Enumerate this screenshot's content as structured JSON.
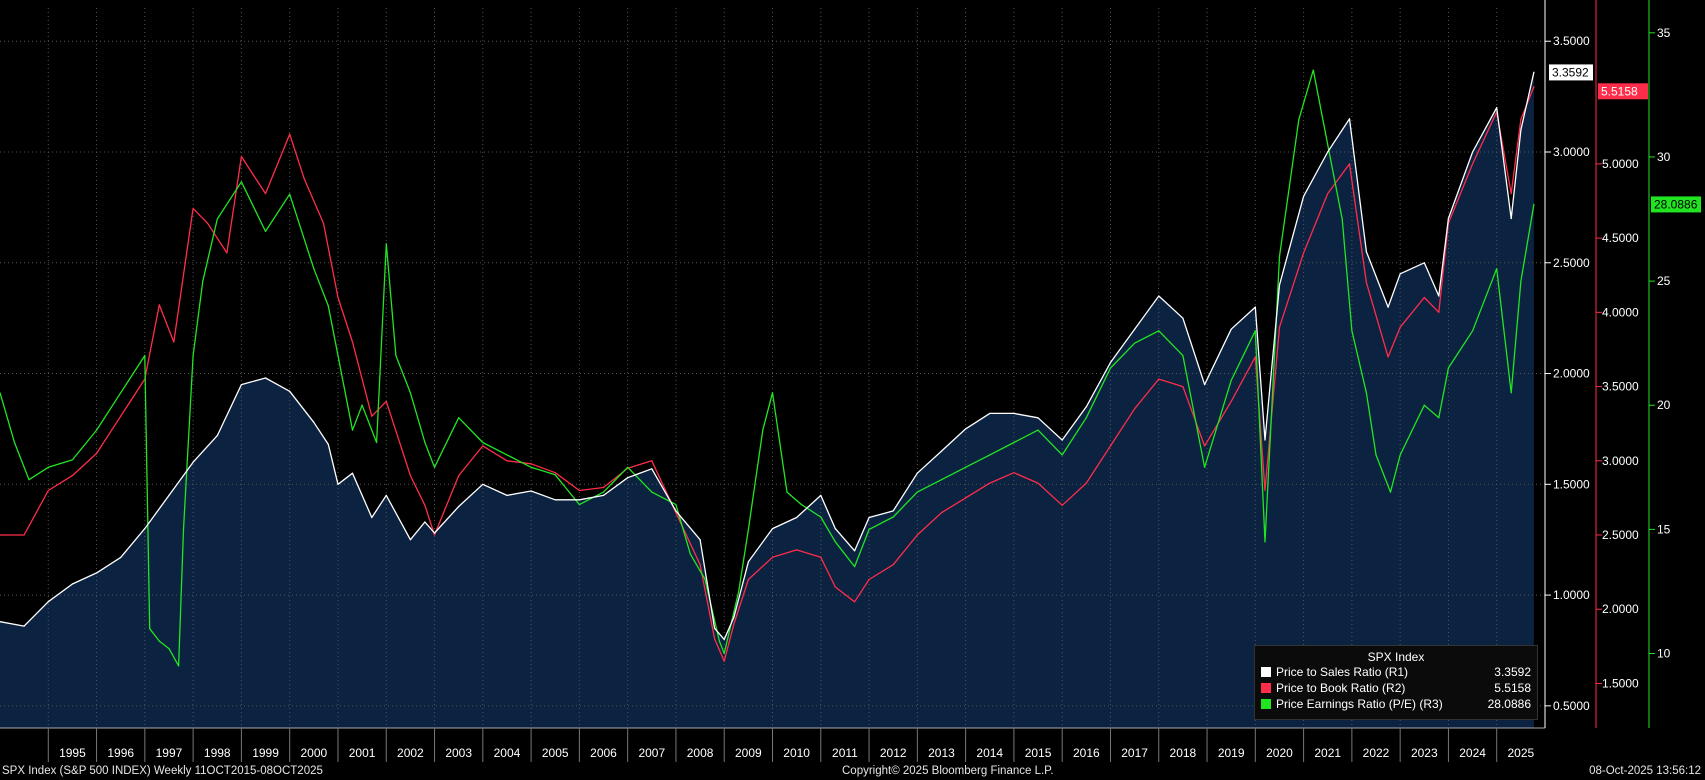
{
  "chart_data": {
    "type": "line",
    "title": "SPX Index",
    "x_range": [
      1994.0,
      2026.0
    ],
    "year_labels": [
      "1995",
      "1996",
      "1997",
      "1998",
      "1999",
      "2000",
      "2001",
      "2002",
      "2003",
      "2004",
      "2005",
      "2006",
      "2007",
      "2008",
      "2009",
      "2010",
      "2011",
      "2012",
      "2013",
      "2014",
      "2015",
      "2016",
      "2017",
      "2018",
      "2019",
      "2020",
      "2021",
      "2022",
      "2023",
      "2024",
      "2025"
    ],
    "axes": {
      "r1": {
        "min": 0.4,
        "max": 3.65,
        "ticks": [
          "0.5000",
          "1.0000",
          "1.5000",
          "2.0000",
          "2.5000",
          "3.0000",
          "3.5000"
        ],
        "tick_values": [
          0.5,
          1.0,
          1.5,
          2.0,
          2.5,
          3.0,
          3.5
        ],
        "color": "#ffffff"
      },
      "r2": {
        "min": 1.2,
        "max": 6.05,
        "ticks": [
          "1.5000",
          "2.0000",
          "2.5000",
          "3.0000",
          "3.5000",
          "4.0000",
          "4.5000",
          "5.0000"
        ],
        "tick_values": [
          1.5,
          2.0,
          2.5,
          3.0,
          3.5,
          4.0,
          4.5,
          5.0
        ],
        "color": "#ff2d4a"
      },
      "r3": {
        "min": 7.0,
        "max": 36.0,
        "ticks": [
          "10",
          "15",
          "20",
          "25",
          "30",
          "35"
        ],
        "tick_values": [
          10,
          15,
          20,
          25,
          30,
          35
        ],
        "color": "#22e522"
      }
    },
    "series": [
      {
        "name": "Price to Sales Ratio",
        "axis": "r1",
        "color": "#ffffff",
        "filled": true,
        "x": [
          1994.0,
          1994.5,
          1995.0,
          1995.5,
          1996.0,
          1996.5,
          1997.0,
          1997.5,
          1998.0,
          1998.5,
          1999.0,
          1999.5,
          2000.0,
          2000.5,
          2000.8,
          2001.0,
          2001.3,
          2001.7,
          2002.0,
          2002.5,
          2002.8,
          2003.0,
          2003.5,
          2004.0,
          2004.5,
          2005.0,
          2005.5,
          2006.0,
          2006.5,
          2007.0,
          2007.5,
          2008.0,
          2008.5,
          2008.8,
          2009.0,
          2009.2,
          2009.5,
          2010.0,
          2010.5,
          2011.0,
          2011.3,
          2011.7,
          2012.0,
          2012.5,
          2013.0,
          2013.5,
          2014.0,
          2014.5,
          2015.0,
          2015.5,
          2016.0,
          2016.5,
          2017.0,
          2017.5,
          2018.0,
          2018.5,
          2018.95,
          2019.5,
          2020.0,
          2020.2,
          2020.5,
          2021.0,
          2021.5,
          2021.95,
          2022.3,
          2022.75,
          2023.0,
          2023.5,
          2023.8,
          2024.0,
          2024.5,
          2025.0,
          2025.3,
          2025.5,
          2025.77
        ],
        "values": [
          0.88,
          0.86,
          0.97,
          1.05,
          1.1,
          1.17,
          1.3,
          1.45,
          1.6,
          1.72,
          1.95,
          1.98,
          1.92,
          1.78,
          1.68,
          1.5,
          1.55,
          1.35,
          1.45,
          1.25,
          1.33,
          1.28,
          1.4,
          1.5,
          1.45,
          1.47,
          1.43,
          1.43,
          1.45,
          1.53,
          1.57,
          1.38,
          1.25,
          0.85,
          0.8,
          0.9,
          1.15,
          1.3,
          1.35,
          1.45,
          1.3,
          1.2,
          1.35,
          1.38,
          1.55,
          1.65,
          1.75,
          1.82,
          1.82,
          1.8,
          1.7,
          1.85,
          2.05,
          2.2,
          2.35,
          2.25,
          1.95,
          2.2,
          2.3,
          1.7,
          2.4,
          2.8,
          3.0,
          3.15,
          2.55,
          2.3,
          2.45,
          2.5,
          2.35,
          2.7,
          3.0,
          3.2,
          2.7,
          3.1,
          3.36
        ]
      },
      {
        "name": "Price to Book Ratio",
        "axis": "r2",
        "color": "#ff2d4a",
        "filled": false,
        "x": [
          1994.0,
          1994.5,
          1995.0,
          1995.5,
          1996.0,
          1996.5,
          1997.0,
          1997.3,
          1997.6,
          1998.0,
          1998.3,
          1998.7,
          1999.0,
          1999.5,
          2000.0,
          2000.3,
          2000.7,
          2001.0,
          2001.3,
          2001.7,
          2002.0,
          2002.5,
          2002.8,
          2003.0,
          2003.5,
          2004.0,
          2004.5,
          2005.0,
          2005.5,
          2006.0,
          2006.5,
          2007.0,
          2007.5,
          2008.0,
          2008.5,
          2008.8,
          2009.0,
          2009.2,
          2009.5,
          2010.0,
          2010.5,
          2011.0,
          2011.3,
          2011.7,
          2012.0,
          2012.5,
          2013.0,
          2013.5,
          2014.0,
          2014.5,
          2015.0,
          2015.5,
          2016.0,
          2016.5,
          2017.0,
          2017.5,
          2018.0,
          2018.5,
          2018.95,
          2019.5,
          2020.0,
          2020.2,
          2020.5,
          2021.0,
          2021.5,
          2021.95,
          2022.3,
          2022.75,
          2023.0,
          2023.5,
          2023.8,
          2024.0,
          2024.5,
          2025.0,
          2025.3,
          2025.5,
          2025.77
        ],
        "values": [
          2.5,
          2.5,
          2.8,
          2.9,
          3.05,
          3.3,
          3.55,
          4.05,
          3.8,
          4.7,
          4.6,
          4.4,
          5.05,
          4.8,
          5.2,
          4.9,
          4.6,
          4.1,
          3.8,
          3.3,
          3.4,
          2.9,
          2.7,
          2.5,
          2.9,
          3.1,
          3.0,
          2.98,
          2.92,
          2.8,
          2.82,
          2.95,
          3.0,
          2.65,
          2.3,
          1.8,
          1.65,
          1.9,
          2.2,
          2.35,
          2.4,
          2.35,
          2.15,
          2.05,
          2.2,
          2.3,
          2.5,
          2.65,
          2.75,
          2.85,
          2.92,
          2.85,
          2.7,
          2.85,
          3.1,
          3.35,
          3.55,
          3.5,
          3.1,
          3.4,
          3.7,
          2.8,
          3.9,
          4.4,
          4.8,
          5.0,
          4.2,
          3.7,
          3.9,
          4.1,
          4.0,
          4.6,
          5.0,
          5.35,
          4.8,
          5.3,
          5.52
        ]
      },
      {
        "name": "Price Earnings Ratio (P/E)",
        "axis": "r3",
        "color": "#22e522",
        "filled": false,
        "x": [
          1994.0,
          1994.3,
          1994.6,
          1995.0,
          1995.5,
          1996.0,
          1996.5,
          1997.0,
          1997.1,
          1997.3,
          1997.5,
          1997.7,
          1997.8,
          1998.0,
          1998.2,
          1998.5,
          1999.0,
          1999.5,
          2000.0,
          2000.5,
          2000.8,
          2001.0,
          2001.3,
          2001.5,
          2001.8,
          2002.0,
          2002.2,
          2002.5,
          2002.8,
          2003.0,
          2003.5,
          2004.0,
          2004.5,
          2005.0,
          2005.5,
          2006.0,
          2006.5,
          2007.0,
          2007.5,
          2008.0,
          2008.3,
          2008.6,
          2008.9,
          2009.0,
          2009.3,
          2009.5,
          2009.8,
          2010.0,
          2010.3,
          2010.6,
          2011.0,
          2011.3,
          2011.7,
          2012.0,
          2012.5,
          2013.0,
          2013.5,
          2014.0,
          2014.5,
          2015.0,
          2015.5,
          2016.0,
          2016.5,
          2017.0,
          2017.5,
          2018.0,
          2018.5,
          2018.95,
          2019.5,
          2020.0,
          2020.2,
          2020.5,
          2020.9,
          2021.2,
          2021.5,
          2021.8,
          2022.0,
          2022.3,
          2022.5,
          2022.8,
          2023.0,
          2023.5,
          2023.8,
          2024.0,
          2024.5,
          2025.0,
          2025.3,
          2025.5,
          2025.77
        ],
        "values": [
          20.5,
          18.5,
          17.0,
          17.5,
          17.8,
          19.0,
          20.5,
          22.0,
          11.0,
          10.5,
          10.2,
          9.5,
          15.0,
          22.0,
          25.0,
          27.5,
          29.0,
          27.0,
          28.5,
          25.5,
          24.0,
          22.0,
          19.0,
          20.0,
          18.5,
          26.5,
          22.0,
          20.5,
          18.5,
          17.5,
          19.5,
          18.5,
          18.0,
          17.5,
          17.2,
          16.0,
          16.5,
          17.5,
          16.5,
          16.0,
          14.0,
          13.0,
          10.5,
          10.0,
          12.5,
          15.0,
          19.0,
          20.5,
          16.5,
          16.0,
          15.5,
          14.5,
          13.5,
          15.0,
          15.5,
          16.5,
          17.0,
          17.5,
          18.0,
          18.5,
          19.0,
          18.0,
          19.5,
          21.5,
          22.5,
          23.0,
          22.0,
          17.5,
          21.0,
          23.0,
          14.5,
          26.0,
          31.5,
          33.5,
          30.5,
          27.5,
          23.0,
          20.5,
          18.0,
          16.5,
          18.0,
          20.0,
          19.5,
          21.5,
          23.0,
          25.5,
          20.5,
          25.0,
          28.09
        ]
      }
    ],
    "last_values": {
      "r1": "3.3592",
      "r2": "5.5158",
      "r3": "28.0886"
    },
    "legend": {
      "title": "SPX Index",
      "entries": [
        {
          "label": "Price to Sales Ratio  (R1)",
          "value": "3.3592",
          "color": "#ffffff"
        },
        {
          "label": "Price to Book Ratio  (R2)",
          "value": "5.5158",
          "color": "#ff2d4a"
        },
        {
          "label": "Price Earnings Ratio (P/E)  (R3)",
          "value": "28.0886",
          "color": "#22e522"
        }
      ]
    },
    "colors": {
      "fill": "#0b2240",
      "grid": "#555555",
      "background": "#000000"
    }
  },
  "footer": {
    "left": "SPX Index (S&P 500 INDEX) Weekly 11OCT2015-08OCT2025",
    "center": "Copyright© 2025 Bloomberg Finance L.P.",
    "right": "08-Oct-2025 13:56:12"
  }
}
